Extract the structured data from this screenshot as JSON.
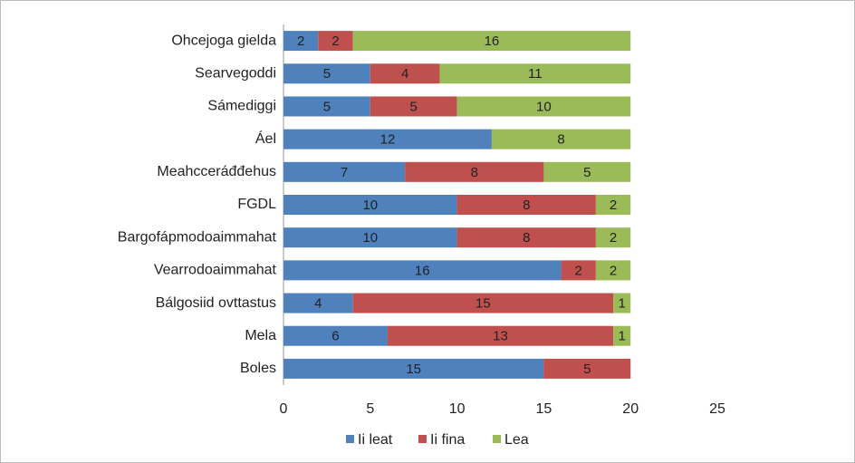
{
  "chart_data": {
    "type": "stacked_bar_horizontal",
    "categories": [
      "Ohcejoga gielda",
      "Searvegoddi",
      "Sámediggi",
      "Áel",
      "Meahcceráđđehus",
      "FGDL",
      "Bargofápmodoaimmahat",
      "Vearrodoaimmahat",
      "Bálgosiid ovttastus",
      "Mela",
      "Boles"
    ],
    "series": [
      {
        "name": "Ii leat",
        "color": "#4f81bd",
        "values": [
          2,
          5,
          5,
          12,
          7,
          10,
          10,
          16,
          4,
          6,
          15
        ]
      },
      {
        "name": "Ii fina",
        "color": "#c0504d",
        "values": [
          2,
          4,
          5,
          null,
          8,
          8,
          8,
          2,
          15,
          13,
          5
        ]
      },
      {
        "name": "Lea",
        "color": "#9bbb59",
        "values": [
          16,
          11,
          10,
          8,
          5,
          2,
          2,
          2,
          1,
          1,
          null
        ]
      }
    ],
    "xlim": [
      0,
      25
    ],
    "xticks": [
      0,
      5,
      10,
      15,
      20,
      25
    ],
    "grid": false,
    "legend": "bottom"
  }
}
